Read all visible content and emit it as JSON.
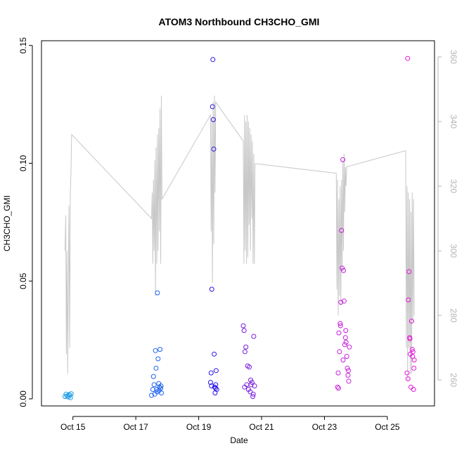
{
  "chart_data": {
    "type": "scatter",
    "title": "ATOM3 Northbound CH3CHO_GMI",
    "xlabel": "Date",
    "ylabel": "CH3CHO_GMI",
    "xlim": [
      "2017-10-14T00:00",
      "2017-10-26T12:00"
    ],
    "ylim": [
      -0.003,
      0.152
    ],
    "y2lim": [
      252,
      365
    ],
    "grid": false,
    "legend": "none",
    "x_ticks": [
      {
        "date": "2017-10-15",
        "label": "Oct 15"
      },
      {
        "date": "2017-10-17",
        "label": "Oct 17"
      },
      {
        "date": "2017-10-19",
        "label": "Oct 19"
      },
      {
        "date": "2017-10-21",
        "label": "Oct 21"
      },
      {
        "date": "2017-10-23",
        "label": "Oct 23"
      },
      {
        "date": "2017-10-25",
        "label": "Oct 25"
      }
    ],
    "y_ticks": [
      "0.00",
      "0.05",
      "0.10",
      "0.15"
    ],
    "y2_ticks": [
      "260",
      "280",
      "300",
      "320",
      "340",
      "360"
    ],
    "colors": {
      "axis": "#000000",
      "secondary_axis": "#b4b4b4",
      "line": "#c8c8c8"
    },
    "series": [
      {
        "color": "#1e9be6",
        "x": [
          "2017-10-14T18:00",
          "2017-10-14T18:45",
          "2017-10-14T19:30",
          "2017-10-14T20:30",
          "2017-10-14T21:00",
          "2017-10-14T21:40",
          "2017-10-14T22:10",
          "2017-10-14T22:40"
        ],
        "y": [
          0.001,
          0.002,
          0.0012,
          0.0008,
          0.0018,
          0.0015,
          0.0005,
          0.0022
        ]
      },
      {
        "color": "#1e63f0",
        "x": [
          "2017-10-17T12:00",
          "2017-10-17T13:00",
          "2017-10-17T14:00",
          "2017-10-17T15:00",
          "2017-10-17T15:30",
          "2017-10-17T16:00",
          "2017-10-17T16:30",
          "2017-10-17T17:00",
          "2017-10-17T17:30",
          "2017-10-17T18:00",
          "2017-10-17T18:30",
          "2017-10-17T19:00",
          "2017-10-17T19:30",
          "2017-10-17T13:30",
          "2017-10-17T14:30",
          "2017-10-17T16:15",
          "2017-10-17T19:10",
          "2017-10-17T17:45"
        ],
        "y": [
          0.0015,
          0.004,
          0.006,
          0.0205,
          0.013,
          0.004,
          0.045,
          0.017,
          0.0065,
          0.005,
          0.021,
          0.0045,
          0.0025,
          0.0095,
          0.002,
          0.003,
          0.0055,
          0.0035
        ]
      },
      {
        "color": "#2814e6",
        "x": [
          "2017-10-19T09:00",
          "2017-10-19T09:30",
          "2017-10-19T10:00",
          "2017-10-19T10:30",
          "2017-10-19T10:50",
          "2017-10-19T11:10",
          "2017-10-19T11:30",
          "2017-10-19T11:50",
          "2017-10-19T12:10",
          "2017-10-19T12:30",
          "2017-10-19T13:00",
          "2017-10-19T13:20",
          "2017-10-19T13:45",
          "2017-10-19T09:45",
          "2017-10-19T12:50"
        ],
        "y": [
          0.007,
          0.011,
          0.0465,
          0.124,
          0.144,
          0.1185,
          0.106,
          0.019,
          0.005,
          0.0025,
          0.006,
          0.012,
          0.004,
          0.0055,
          0.0045
        ]
      },
      {
        "color": "#781edc",
        "x": [
          "2017-10-20T10:00",
          "2017-10-20T10:40",
          "2017-10-20T11:20",
          "2017-10-20T12:00",
          "2017-10-20T12:40",
          "2017-10-20T13:20",
          "2017-10-20T14:00",
          "2017-10-20T14:40",
          "2017-10-20T15:20",
          "2017-10-20T16:00",
          "2017-10-20T16:40",
          "2017-10-20T17:20",
          "2017-10-20T18:00",
          "2017-10-20T18:40",
          "2017-10-20T11:00",
          "2017-10-20T15:40",
          "2017-10-20T17:40"
        ],
        "y": [
          0.031,
          0.029,
          0.02,
          0.022,
          0.006,
          0.014,
          0.004,
          0.0135,
          0.003,
          0.006,
          0.007,
          0.001,
          0.0265,
          0.0055,
          0.005,
          0.008,
          0.002
        ]
      },
      {
        "color": "#c81edc",
        "x": [
          "2017-10-23T10:00",
          "2017-10-23T10:30",
          "2017-10-23T11:00",
          "2017-10-23T11:30",
          "2017-10-23T12:00",
          "2017-10-23T12:30",
          "2017-10-23T13:00",
          "2017-10-23T13:30",
          "2017-10-23T14:00",
          "2017-10-23T14:30",
          "2017-10-23T15:00",
          "2017-10-23T15:30",
          "2017-10-23T16:00",
          "2017-10-23T16:30",
          "2017-10-23T17:00",
          "2017-10-23T17:30",
          "2017-10-23T18:00",
          "2017-10-23T18:30",
          "2017-10-23T19:00",
          "2017-10-23T10:45",
          "2017-10-23T12:15",
          "2017-10-23T14:15",
          "2017-10-23T16:15",
          "2017-10-23T18:15"
        ],
        "y": [
          0.005,
          0.011,
          0.028,
          0.02,
          0.032,
          0.041,
          0.0715,
          0.0555,
          0.1015,
          0.0545,
          0.0415,
          0.023,
          0.026,
          0.024,
          0.018,
          0.013,
          0.01,
          0.0075,
          0.022,
          0.0045,
          0.031,
          0.0165,
          0.029,
          0.012
        ]
      },
      {
        "color": "#e614dc",
        "x": [
          "2017-10-25T15:00",
          "2017-10-25T15:30",
          "2017-10-25T16:00",
          "2017-10-25T16:30",
          "2017-10-25T17:00",
          "2017-10-25T17:30",
          "2017-10-25T18:00",
          "2017-10-25T18:30",
          "2017-10-25T19:00",
          "2017-10-25T19:30",
          "2017-10-25T20:00",
          "2017-10-25T20:30",
          "2017-10-25T15:45",
          "2017-10-25T17:15",
          "2017-10-25T19:15",
          "2017-10-25T20:15"
        ],
        "y": [
          0.011,
          0.1445,
          0.042,
          0.054,
          0.026,
          0.019,
          0.005,
          0.033,
          0.021,
          0.02,
          0.004,
          0.0165,
          0.0085,
          0.0255,
          0.018,
          0.013
        ]
      }
    ],
    "secondary_line": {
      "label": "",
      "points": [
        [
          "2017-10-14T18:00",
          300
        ],
        [
          "2017-10-14T18:30",
          311
        ],
        [
          "2017-10-14T19:00",
          268
        ],
        [
          "2017-10-14T19:30",
          300
        ],
        [
          "2017-10-14T20:00",
          262
        ],
        [
          "2017-10-14T20:30",
          290
        ],
        [
          "2017-10-14T21:00",
          314
        ],
        [
          "2017-10-14T21:30",
          270
        ],
        [
          "2017-10-14T22:00",
          318
        ],
        [
          "2017-10-14T22:30",
          324
        ],
        [
          "2017-10-14T23:00",
          336
        ],
        [
          "2017-10-17T12:00",
          310
        ],
        [
          "2017-10-17T12:30",
          318
        ],
        [
          "2017-10-17T13:00",
          296
        ],
        [
          "2017-10-17T13:30",
          322
        ],
        [
          "2017-10-17T14:00",
          300
        ],
        [
          "2017-10-17T14:30",
          328
        ],
        [
          "2017-10-17T15:00",
          286
        ],
        [
          "2017-10-17T15:30",
          332
        ],
        [
          "2017-10-17T16:00",
          296
        ],
        [
          "2017-10-17T16:30",
          336
        ],
        [
          "2017-10-17T17:00",
          300
        ],
        [
          "2017-10-17T17:30",
          338
        ],
        [
          "2017-10-17T18:00",
          306
        ],
        [
          "2017-10-17T18:30",
          344
        ],
        [
          "2017-10-17T19:00",
          296
        ],
        [
          "2017-10-17T19:30",
          348
        ],
        [
          "2017-10-17T20:00",
          316
        ],
        [
          "2017-10-19T09:00",
          342
        ],
        [
          "2017-10-19T09:30",
          306
        ],
        [
          "2017-10-19T10:00",
          340
        ],
        [
          "2017-10-19T10:30",
          290
        ],
        [
          "2017-10-19T11:00",
          346
        ],
        [
          "2017-10-19T11:30",
          302
        ],
        [
          "2017-10-19T12:00",
          348
        ],
        [
          "2017-10-19T12:30",
          318
        ],
        [
          "2017-10-19T13:00",
          346
        ],
        [
          "2017-10-20T10:00",
          334
        ],
        [
          "2017-10-20T10:30",
          296
        ],
        [
          "2017-10-20T11:00",
          342
        ],
        [
          "2017-10-20T11:30",
          300
        ],
        [
          "2017-10-20T12:00",
          340
        ],
        [
          "2017-10-20T12:30",
          296
        ],
        [
          "2017-10-20T13:00",
          342
        ],
        [
          "2017-10-20T13:30",
          298
        ],
        [
          "2017-10-20T14:00",
          340
        ],
        [
          "2017-10-20T14:30",
          308
        ],
        [
          "2017-10-20T15:00",
          338
        ],
        [
          "2017-10-20T15:30",
          300
        ],
        [
          "2017-10-20T16:00",
          336
        ],
        [
          "2017-10-20T16:30",
          310
        ],
        [
          "2017-10-20T17:00",
          334
        ],
        [
          "2017-10-20T17:30",
          296
        ],
        [
          "2017-10-20T18:00",
          330
        ],
        [
          "2017-10-20T18:30",
          296
        ],
        [
          "2017-10-20T19:00",
          327
        ],
        [
          "2017-10-23T09:00",
          324
        ],
        [
          "2017-10-23T09:30",
          288
        ],
        [
          "2017-10-23T10:00",
          322
        ],
        [
          "2017-10-23T10:30",
          280
        ],
        [
          "2017-10-23T11:00",
          316
        ],
        [
          "2017-10-23T11:30",
          286
        ],
        [
          "2017-10-23T12:00",
          320
        ],
        [
          "2017-10-23T12:30",
          283
        ],
        [
          "2017-10-23T13:00",
          322
        ],
        [
          "2017-10-23T13:30",
          294
        ],
        [
          "2017-10-23T14:00",
          328
        ],
        [
          "2017-10-23T14:30",
          300
        ],
        [
          "2017-10-23T15:00",
          330
        ],
        [
          "2017-10-23T15:30",
          312
        ],
        [
          "2017-10-23T16:00",
          326
        ],
        [
          "2017-10-23T16:30",
          320
        ],
        [
          "2017-10-23T17:00",
          326
        ],
        [
          "2017-10-25T14:00",
          331
        ],
        [
          "2017-10-25T14:30",
          270
        ],
        [
          "2017-10-25T15:00",
          320
        ],
        [
          "2017-10-25T15:30",
          260
        ],
        [
          "2017-10-25T16:00",
          318
        ],
        [
          "2017-10-25T16:30",
          270
        ],
        [
          "2017-10-25T17:00",
          316
        ],
        [
          "2017-10-25T17:30",
          262
        ],
        [
          "2017-10-25T18:00",
          312
        ],
        [
          "2017-10-25T18:30",
          262
        ],
        [
          "2017-10-25T19:00",
          318
        ],
        [
          "2017-10-25T19:30",
          278
        ],
        [
          "2017-10-25T20:00",
          316
        ],
        [
          "2017-10-25T20:30",
          280
        ]
      ]
    }
  }
}
